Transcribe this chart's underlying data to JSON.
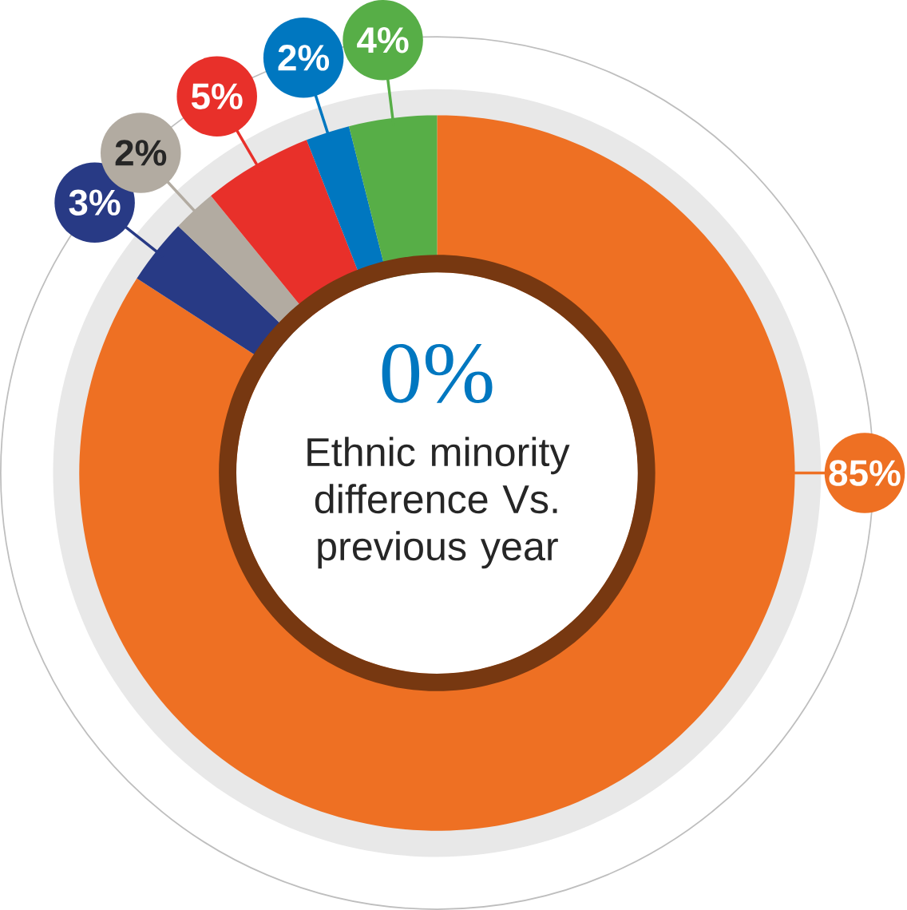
{
  "chart_data": {
    "type": "donut",
    "categories": [
      null,
      null,
      null,
      null,
      null,
      null
    ],
    "values": [
      85,
      3,
      2,
      5,
      2,
      4
    ],
    "colors": [
      "#ee7023",
      "#283a85",
      "#b2aba1",
      "#e8302a",
      "#0077c0",
      "#57ae47"
    ],
    "value_labels": [
      "85%",
      "3%",
      "2%",
      "5%",
      "2%",
      "4%"
    ],
    "annotations": [
      "0%",
      "Ethnic minority difference Vs. previous year"
    ]
  }
}
